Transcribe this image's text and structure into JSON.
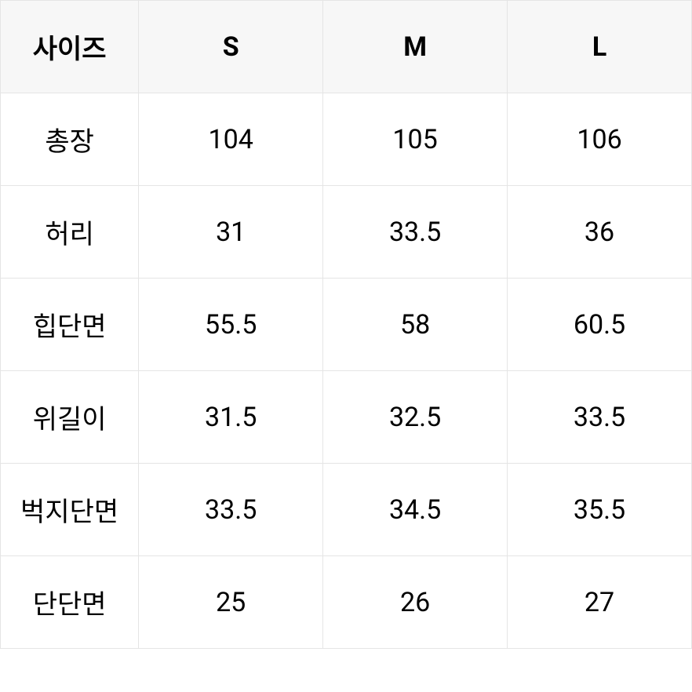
{
  "size_table": {
    "type": "table",
    "background_color": "#ffffff",
    "header_bg_color": "#f7f7f7",
    "border_color": "#e5e5e5",
    "text_color": "#000000",
    "header_fontsize": 34,
    "cell_fontsize": 34,
    "header_font_weight": 700,
    "cell_font_weight": 400,
    "columns": [
      "사이즈",
      "S",
      "M",
      "L"
    ],
    "rows": [
      {
        "label": "총장",
        "values": [
          "104",
          "105",
          "106"
        ]
      },
      {
        "label": "허리",
        "values": [
          "31",
          "33.5",
          "36"
        ]
      },
      {
        "label": "힙단면",
        "values": [
          "55.5",
          "58",
          "60.5"
        ]
      },
      {
        "label": "위길이",
        "values": [
          "31.5",
          "32.5",
          "33.5"
        ]
      },
      {
        "label": "벅지단면",
        "values": [
          "33.5",
          "34.5",
          "35.5"
        ]
      },
      {
        "label": "단단면",
        "values": [
          "25",
          "26",
          "27"
        ]
      }
    ]
  }
}
